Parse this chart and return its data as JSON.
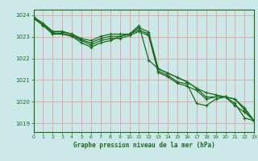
{
  "title": "Graphe pression niveau de la mer (hPa)",
  "bg_color": "#cce8e8",
  "line_color": "#1a6b1a",
  "grid_color": "#e8a0a0",
  "ylim": [
    1018.6,
    1024.25
  ],
  "xlim": [
    0,
    23
  ],
  "yticks": [
    1019,
    1020,
    1021,
    1022,
    1023,
    1024
  ],
  "xticks": [
    0,
    1,
    2,
    3,
    4,
    5,
    6,
    7,
    8,
    9,
    10,
    11,
    12,
    13,
    14,
    15,
    16,
    17,
    18,
    19,
    20,
    21,
    22,
    23
  ],
  "lines": [
    [
      1023.85,
      1023.55,
      1023.15,
      1023.15,
      1023.05,
      1022.82,
      1022.62,
      1022.82,
      1022.92,
      1022.92,
      1023.05,
      1023.25,
      1023.05,
      1021.35,
      1021.15,
      1020.85,
      1020.72,
      1020.52,
      1020.12,
      1020.22,
      1020.22,
      1019.92,
      1019.25,
      1019.12
    ],
    [
      1023.85,
      1023.52,
      1023.12,
      1023.12,
      1023.02,
      1022.72,
      1022.52,
      1022.72,
      1022.82,
      1023.02,
      1023.12,
      1023.32,
      1023.12,
      1021.42,
      1021.22,
      1020.92,
      1020.82,
      1019.92,
      1019.82,
      1020.12,
      1020.22,
      1019.82,
      1019.52,
      1019.12
    ],
    [
      1023.88,
      1023.55,
      1023.22,
      1023.22,
      1023.12,
      1022.85,
      1022.72,
      1022.92,
      1023.02,
      1023.02,
      1023.12,
      1023.42,
      1023.22,
      1021.52,
      1021.32,
      1021.12,
      1020.92,
      1020.62,
      1020.22,
      1020.22,
      1020.22,
      1020.12,
      1019.62,
      1019.12
    ],
    [
      1023.92,
      1023.62,
      1023.25,
      1023.25,
      1023.12,
      1022.92,
      1022.82,
      1023.02,
      1023.12,
      1023.12,
      1023.12,
      1023.52,
      1021.92,
      1021.52,
      1021.32,
      1021.12,
      1020.92,
      1020.62,
      1020.42,
      1020.32,
      1020.22,
      1020.12,
      1019.72,
      1019.12
    ]
  ],
  "figsize": [
    3.2,
    2.0
  ],
  "dpi": 100
}
